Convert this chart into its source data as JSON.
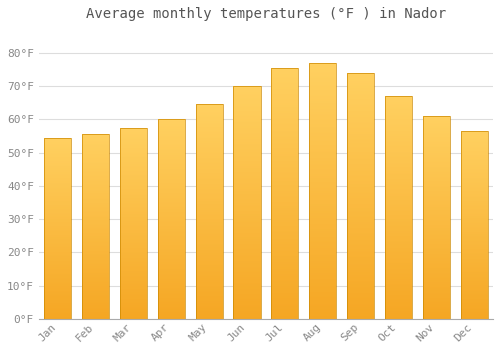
{
  "title": "Average monthly temperatures (°F ) in Nador",
  "months": [
    "Jan",
    "Feb",
    "Mar",
    "Apr",
    "May",
    "Jun",
    "Jul",
    "Aug",
    "Sep",
    "Oct",
    "Nov",
    "Dec"
  ],
  "values": [
    54.5,
    55.5,
    57.5,
    60.0,
    64.5,
    70.0,
    75.5,
    77.0,
    74.0,
    67.0,
    61.0,
    56.5
  ],
  "bar_color_bottom": "#F5A623",
  "bar_color_top": "#FFD060",
  "background_color": "#FFFFFF",
  "grid_color": "#DDDDDD",
  "text_color": "#888888",
  "title_color": "#555555",
  "ylim": [
    0,
    88
  ],
  "yticks": [
    0,
    10,
    20,
    30,
    40,
    50,
    60,
    70,
    80
  ],
  "ytick_labels": [
    "0°F",
    "10°F",
    "20°F",
    "30°F",
    "40°F",
    "50°F",
    "60°F",
    "70°F",
    "80°F"
  ],
  "title_fontsize": 10,
  "tick_fontsize": 8,
  "bar_width": 0.72,
  "bar_edge_color": "#CC8800",
  "bar_edge_width": 0.5
}
